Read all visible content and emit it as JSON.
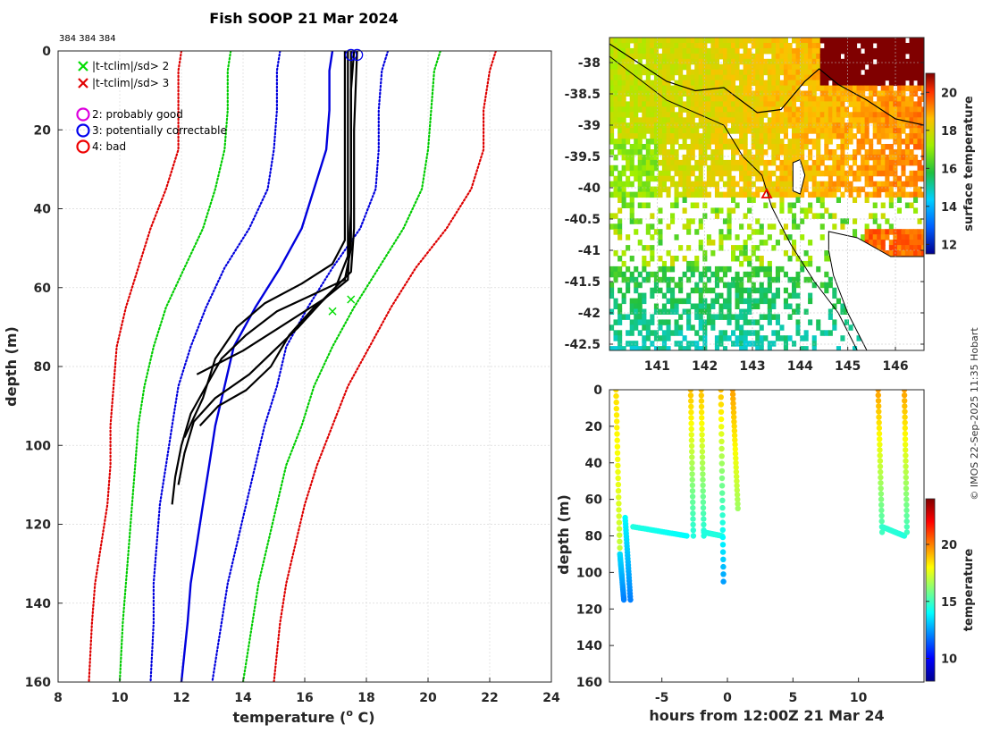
{
  "chart_data": [
    {
      "type": "line",
      "title": "Fish SOOP 21 Mar 2024",
      "subtitle": "384 384 384",
      "xlabel": "temperature (",
      "xlabel_sup": "o",
      "xlabel_tail": " C)",
      "ylabel": "depth (m)",
      "xlim": [
        8,
        24
      ],
      "ylim": [
        0,
        160
      ],
      "xticks": [
        "8",
        "10",
        "12",
        "14",
        "16",
        "18",
        "20",
        "22",
        "24"
      ],
      "yticks": [
        "0",
        "20",
        "40",
        "60",
        "80",
        "100",
        "120",
        "140",
        "160"
      ],
      "grid": true,
      "legend": [
        {
          "marker": "x",
          "color": "#00dd00",
          "label": "|t-tclim|/sd> 2"
        },
        {
          "marker": "x",
          "color": "#e00000",
          "label": "|t-tclim|/sd> 3"
        },
        {
          "marker": "o",
          "color": "#dd00dd",
          "label": "2: probably good"
        },
        {
          "marker": "o",
          "color": "#0000ee",
          "label": "3: potentially correctable"
        },
        {
          "marker": "o",
          "color": "#ee0000",
          "label": "4: bad"
        }
      ],
      "series": [
        {
          "name": "climatology mean",
          "style": "solid",
          "color": "#0000dd",
          "points": [
            [
              16.9,
              0
            ],
            [
              16.8,
              5
            ],
            [
              16.8,
              15
            ],
            [
              16.7,
              25
            ],
            [
              16.3,
              35
            ],
            [
              15.9,
              45
            ],
            [
              15.2,
              55
            ],
            [
              14.4,
              65
            ],
            [
              13.7,
              75
            ],
            [
              13.4,
              85
            ],
            [
              13.1,
              95
            ],
            [
              12.9,
              105
            ],
            [
              12.7,
              115
            ],
            [
              12.5,
              125
            ],
            [
              12.3,
              135
            ],
            [
              12.2,
              145
            ],
            [
              12.0,
              160
            ]
          ]
        },
        {
          "name": "+1 sd",
          "style": "dotted",
          "color": "#0000dd",
          "points": [
            [
              18.7,
              0
            ],
            [
              18.5,
              5
            ],
            [
              18.4,
              15
            ],
            [
              18.4,
              25
            ],
            [
              18.3,
              35
            ],
            [
              17.8,
              45
            ],
            [
              16.9,
              55
            ],
            [
              16.1,
              65
            ],
            [
              15.4,
              75
            ],
            [
              15.1,
              85
            ],
            [
              14.7,
              95
            ],
            [
              14.4,
              105
            ],
            [
              14.1,
              115
            ],
            [
              13.8,
              125
            ],
            [
              13.5,
              135
            ],
            [
              13.3,
              145
            ],
            [
              13.0,
              160
            ]
          ]
        },
        {
          "name": "-1 sd",
          "style": "dotted",
          "color": "#0000dd",
          "points": [
            [
              15.2,
              0
            ],
            [
              15.1,
              5
            ],
            [
              15.1,
              15
            ],
            [
              15.0,
              25
            ],
            [
              14.8,
              35
            ],
            [
              14.2,
              45
            ],
            [
              13.4,
              55
            ],
            [
              12.8,
              65
            ],
            [
              12.3,
              75
            ],
            [
              11.9,
              85
            ],
            [
              11.7,
              95
            ],
            [
              11.5,
              105
            ],
            [
              11.3,
              115
            ],
            [
              11.2,
              125
            ],
            [
              11.1,
              135
            ],
            [
              11.1,
              145
            ],
            [
              11.0,
              160
            ]
          ]
        },
        {
          "name": "+2 sd",
          "style": "dotted",
          "color": "#00cc00",
          "points": [
            [
              20.4,
              0
            ],
            [
              20.2,
              5
            ],
            [
              20.1,
              15
            ],
            [
              20.0,
              25
            ],
            [
              19.8,
              35
            ],
            [
              19.2,
              45
            ],
            [
              18.4,
              55
            ],
            [
              17.6,
              65
            ],
            [
              16.9,
              75
            ],
            [
              16.3,
              85
            ],
            [
              15.9,
              95
            ],
            [
              15.4,
              105
            ],
            [
              15.1,
              115
            ],
            [
              14.8,
              125
            ],
            [
              14.5,
              135
            ],
            [
              14.3,
              145
            ],
            [
              14.0,
              160
            ]
          ]
        },
        {
          "name": "-2 sd",
          "style": "dotted",
          "color": "#00cc00",
          "points": [
            [
              13.6,
              0
            ],
            [
              13.5,
              5
            ],
            [
              13.5,
              15
            ],
            [
              13.4,
              25
            ],
            [
              13.1,
              35
            ],
            [
              12.7,
              45
            ],
            [
              12.1,
              55
            ],
            [
              11.5,
              65
            ],
            [
              11.1,
              75
            ],
            [
              10.8,
              85
            ],
            [
              10.6,
              95
            ],
            [
              10.5,
              105
            ],
            [
              10.4,
              115
            ],
            [
              10.3,
              125
            ],
            [
              10.2,
              135
            ],
            [
              10.1,
              145
            ],
            [
              10.0,
              160
            ]
          ]
        },
        {
          "name": "+3 sd",
          "style": "dotted",
          "color": "#dd0000",
          "points": [
            [
              22.2,
              0
            ],
            [
              22.0,
              5
            ],
            [
              21.8,
              15
            ],
            [
              21.8,
              25
            ],
            [
              21.4,
              35
            ],
            [
              20.6,
              45
            ],
            [
              19.6,
              55
            ],
            [
              18.8,
              65
            ],
            [
              18.1,
              75
            ],
            [
              17.4,
              85
            ],
            [
              16.9,
              95
            ],
            [
              16.4,
              105
            ],
            [
              16.0,
              115
            ],
            [
              15.7,
              125
            ],
            [
              15.4,
              135
            ],
            [
              15.2,
              145
            ],
            [
              15.0,
              160
            ]
          ]
        },
        {
          "name": "-3 sd",
          "style": "dotted",
          "color": "#dd0000",
          "points": [
            [
              12.0,
              0
            ],
            [
              11.9,
              5
            ],
            [
              11.9,
              15
            ],
            [
              11.9,
              25
            ],
            [
              11.5,
              35
            ],
            [
              11.0,
              45
            ],
            [
              10.6,
              55
            ],
            [
              10.2,
              65
            ],
            [
              9.9,
              75
            ],
            [
              9.8,
              85
            ],
            [
              9.7,
              95
            ],
            [
              9.7,
              105
            ],
            [
              9.6,
              115
            ],
            [
              9.4,
              125
            ],
            [
              9.2,
              135
            ],
            [
              9.1,
              145
            ],
            [
              9.0,
              160
            ]
          ]
        },
        {
          "name": "profile 1",
          "style": "solid",
          "color": "#000000",
          "points": [
            [
              17.6,
              0
            ],
            [
              17.5,
              10
            ],
            [
              17.5,
              30
            ],
            [
              17.5,
              50
            ],
            [
              17.3,
              58
            ],
            [
              16.2,
              62
            ],
            [
              15.1,
              66
            ],
            [
              14.1,
              72
            ],
            [
              13.3,
              78
            ],
            [
              12.8,
              85
            ],
            [
              12.3,
              92
            ],
            [
              12.0,
              100
            ],
            [
              11.8,
              108
            ],
            [
              11.7,
              115
            ]
          ]
        },
        {
          "name": "profile 2",
          "style": "solid",
          "color": "#000000",
          "points": [
            [
              17.4,
              0
            ],
            [
              17.4,
              15
            ],
            [
              17.4,
              35
            ],
            [
              17.4,
              52
            ],
            [
              17.0,
              60
            ],
            [
              16.5,
              64
            ],
            [
              15.8,
              70
            ],
            [
              15.0,
              76
            ],
            [
              14.2,
              82
            ],
            [
              13.1,
              88
            ],
            [
              12.4,
              94
            ],
            [
              12.1,
              102
            ],
            [
              11.9,
              110
            ]
          ]
        },
        {
          "name": "profile 3",
          "style": "solid",
          "color": "#000000",
          "points": [
            [
              17.7,
              0
            ],
            [
              17.6,
              20
            ],
            [
              17.6,
              45
            ],
            [
              17.5,
              56
            ],
            [
              16.6,
              63
            ],
            [
              15.2,
              70
            ],
            [
              14.0,
              76
            ],
            [
              13.0,
              80
            ],
            [
              12.5,
              82
            ]
          ]
        },
        {
          "name": "profile 4",
          "style": "solid",
          "color": "#000000",
          "points": [
            [
              17.3,
              0
            ],
            [
              17.3,
              25
            ],
            [
              17.3,
              48
            ],
            [
              16.9,
              54
            ],
            [
              15.9,
              59
            ],
            [
              14.7,
              64
            ],
            [
              13.8,
              70
            ],
            [
              13.1,
              78
            ],
            [
              12.7,
              88
            ],
            [
              12.4,
              93
            ],
            [
              12.1,
              98
            ]
          ]
        },
        {
          "name": "profile 5",
          "style": "solid",
          "color": "#000000",
          "points": [
            [
              17.5,
              0
            ],
            [
              17.5,
              40
            ],
            [
              17.4,
              58
            ],
            [
              16.3,
              65
            ],
            [
              15.5,
              72
            ],
            [
              14.9,
              80
            ],
            [
              14.1,
              86
            ],
            [
              13.2,
              90
            ],
            [
              12.6,
              95
            ]
          ]
        }
      ],
      "flag_markers": [
        {
          "marker": "x",
          "color": "#00dd00",
          "x": 17.5,
          "y": 63
        },
        {
          "marker": "x",
          "color": "#00dd00",
          "x": 16.9,
          "y": 66
        },
        {
          "marker": "o",
          "color": "#0000ee",
          "x": 17.5,
          "y": 1
        },
        {
          "marker": "o",
          "color": "#0000ee",
          "x": 17.7,
          "y": 1
        }
      ]
    },
    {
      "type": "heatmap",
      "title": "",
      "xlabel": "",
      "ylabel": "",
      "xlim": [
        140.0,
        146.6
      ],
      "ylim": [
        -42.6,
        -37.6
      ],
      "xticks": [
        "141",
        "142",
        "143",
        "144",
        "145",
        "146"
      ],
      "yticks": [
        "-38",
        "-38.5",
        "-39",
        "-39.5",
        "-40",
        "-40.5",
        "-41",
        "-41.5",
        "-42",
        "-42.5"
      ],
      "colorbar": {
        "label": "surface temperature",
        "range": [
          11.5,
          21
        ],
        "ticks": [
          "12",
          "14",
          "16",
          "18",
          "20"
        ]
      },
      "marker": {
        "type": "triangle",
        "lon": 143.3,
        "lat": -40.1,
        "color": "#ee0000"
      }
    },
    {
      "type": "scatter",
      "xlabel": "hours from 12:00Z 21 Mar 24",
      "ylabel": "depth (m)",
      "xlim": [
        -9,
        15
      ],
      "ylim": [
        0,
        160
      ],
      "xticks": [
        "-5",
        "0",
        "5",
        "10"
      ],
      "yticks": [
        "0",
        "20",
        "40",
        "60",
        "80",
        "100",
        "120",
        "140",
        "160"
      ],
      "colorbar": {
        "label": "temperature",
        "range": [
          8,
          24
        ],
        "ticks": [
          "10",
          "15",
          "20"
        ]
      },
      "segments": [
        {
          "t": [
            -8.5,
            -8.2
          ],
          "z": [
            0,
            90
          ],
          "temp": [
            18.5,
            17.0
          ]
        },
        {
          "t": [
            -8.2,
            -7.9
          ],
          "z": [
            90,
            115
          ],
          "temp": [
            13.5,
            12.0
          ]
        },
        {
          "t": [
            -7.8,
            -7.4
          ],
          "z": [
            70,
            115
          ],
          "temp": [
            14.0,
            12.0
          ]
        },
        {
          "t": [
            -7.2,
            -3.1
          ],
          "z": [
            75,
            80
          ],
          "temp": [
            14.5,
            14.0
          ]
        },
        {
          "t": [
            -2.8,
            -2.6
          ],
          "z": [
            0,
            80
          ],
          "temp": [
            19.0,
            14.5
          ]
        },
        {
          "t": [
            -2.0,
            -1.8
          ],
          "z": [
            0,
            80
          ],
          "temp": [
            19.0,
            14.5
          ]
        },
        {
          "t": [
            -1.8,
            -0.4
          ],
          "z": [
            78,
            80
          ],
          "temp": [
            14.5,
            14.5
          ]
        },
        {
          "t": [
            -0.5,
            -0.3
          ],
          "z": [
            0,
            105
          ],
          "temp": [
            19.0,
            12.5
          ]
        },
        {
          "t": [
            0.4,
            0.8
          ],
          "z": [
            0,
            65
          ],
          "temp": [
            19.5,
            16.5
          ]
        },
        {
          "t": [
            11.5,
            11.8
          ],
          "z": [
            0,
            78
          ],
          "temp": [
            19.5,
            15.0
          ]
        },
        {
          "t": [
            11.8,
            13.5
          ],
          "z": [
            75,
            80
          ],
          "temp": [
            14.8,
            14.5
          ]
        },
        {
          "t": [
            13.5,
            13.7
          ],
          "z": [
            0,
            78
          ],
          "temp": [
            19.5,
            15.0
          ]
        }
      ]
    }
  ],
  "watermark": "© IMOS 22-Sep-2025 11:35 Hobart"
}
